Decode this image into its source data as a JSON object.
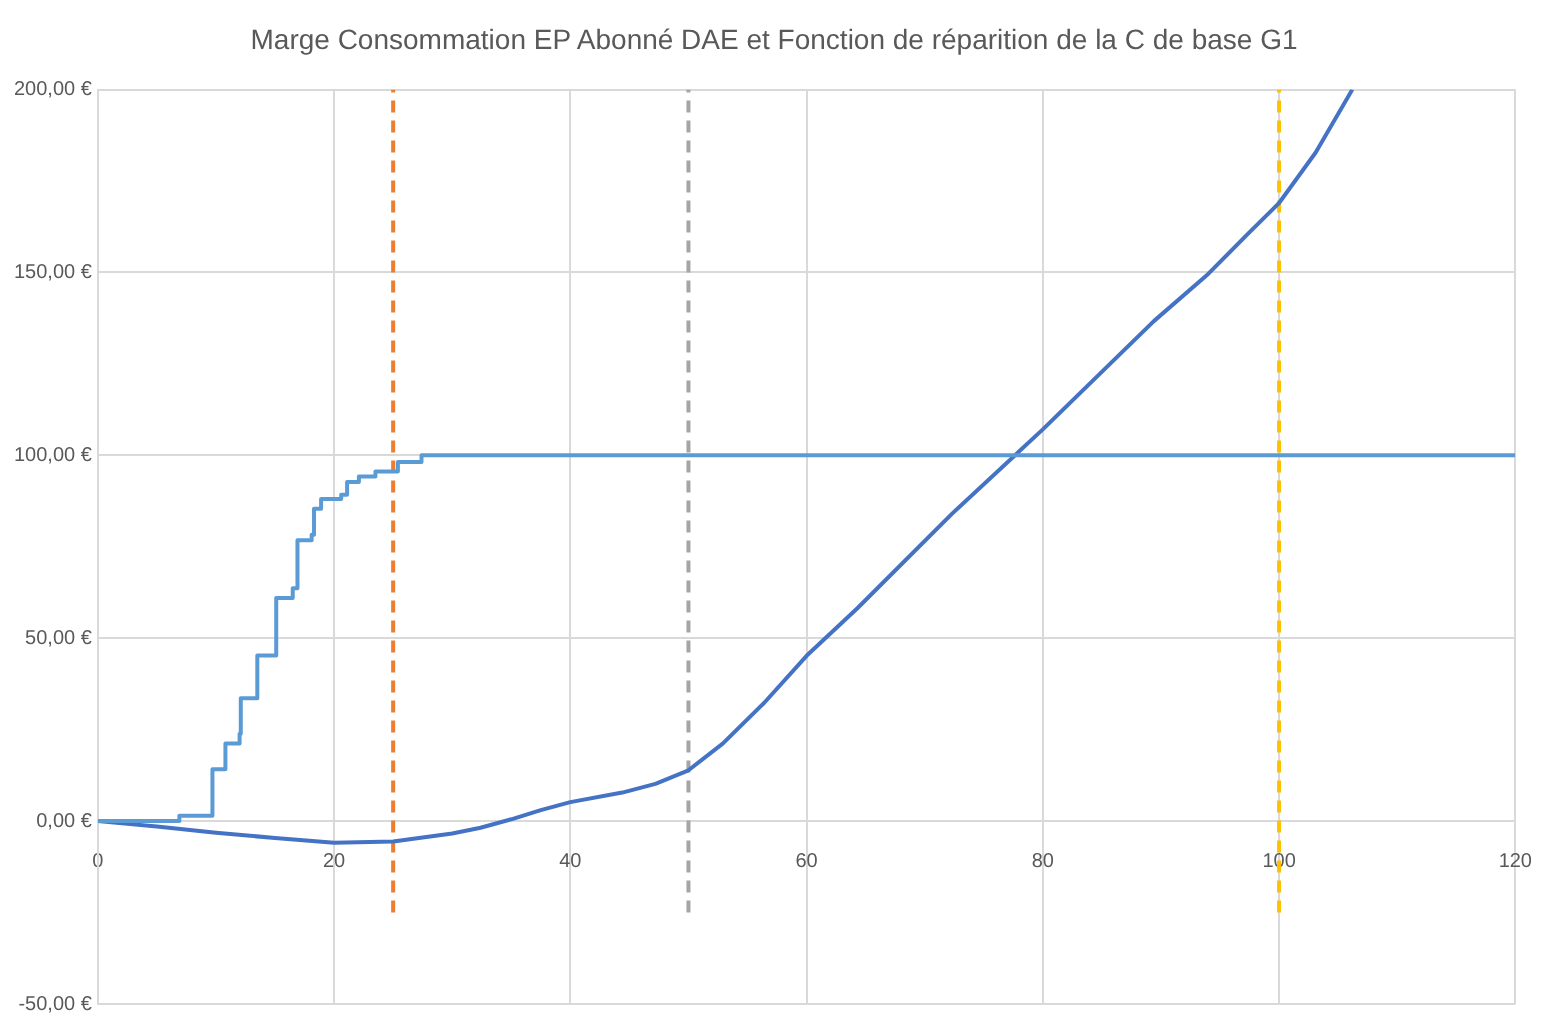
{
  "chart_data": {
    "type": "line",
    "title": "Marge Consommation EP Abonné DAE et Fonction de réparition de la C de base G1",
    "xlim": [
      0,
      120
    ],
    "xticks": [
      0,
      20,
      40,
      60,
      80,
      100,
      120
    ],
    "ylim": [
      -50,
      200
    ],
    "yticks": [
      {
        "value": -50,
        "label": "-50,00 €"
      },
      {
        "value": 0,
        "label": "0,00 €"
      },
      {
        "value": 50,
        "label": "50,00 €"
      },
      {
        "value": 100,
        "label": "100,00 €"
      },
      {
        "value": 150,
        "label": "150,00 €"
      },
      {
        "value": 200,
        "label": "200,00 €"
      }
    ],
    "grid": true,
    "legend": false,
    "marker": "none",
    "series": [
      {
        "type": "step",
        "color": "#5b9bd5",
        "x": [
          0,
          6.9,
          9.7,
          10.8,
          12,
          12.1,
          13.5,
          15.1,
          16.5,
          16.9,
          18.1,
          18.3,
          18.9,
          20.6,
          21.1,
          22.1,
          23.5,
          25.4,
          27.4,
          120
        ],
        "values": [
          0,
          1.5,
          14.2,
          21.2,
          23.9,
          33.6,
          45.3,
          61,
          63.7,
          76.8,
          78.3,
          85.4,
          88.1,
          89.2,
          92.7,
          94.2,
          95.6,
          98.2,
          100,
          100
        ]
      },
      {
        "type": "line",
        "color": "#4472c4",
        "x": [
          0,
          5,
          10,
          15,
          20,
          25,
          30,
          32.4,
          35,
          37.5,
          40,
          44.4,
          47.2,
          50,
          52.9,
          56.4,
          60,
          64.3,
          72.3,
          80,
          89.4,
          94,
          97.4,
          100,
          103.1,
          106.2
        ],
        "values": [
          0,
          -1.5,
          -3.2,
          -4.6,
          -5.9,
          -5.6,
          -3.4,
          -1.8,
          0.5,
          3,
          5.2,
          7.8,
          10.2,
          13.9,
          21.2,
          32.3,
          45.2,
          58.2,
          84,
          107.1,
          136.7,
          149.6,
          160.7,
          169,
          182.8,
          200
        ]
      },
      {
        "type": "line",
        "color": "#ed7d31",
        "line_style": "dashed",
        "x": [
          25,
          25
        ],
        "values": [
          -25,
          200
        ]
      },
      {
        "type": "line",
        "color": "#a5a5a5",
        "line_style": "dashed",
        "x": [
          50,
          50
        ],
        "values": [
          -25,
          200
        ]
      },
      {
        "type": "line",
        "color": "#ffc000",
        "line_style": "dashed",
        "x": [
          100,
          100
        ],
        "values": [
          -25,
          200
        ]
      }
    ]
  }
}
